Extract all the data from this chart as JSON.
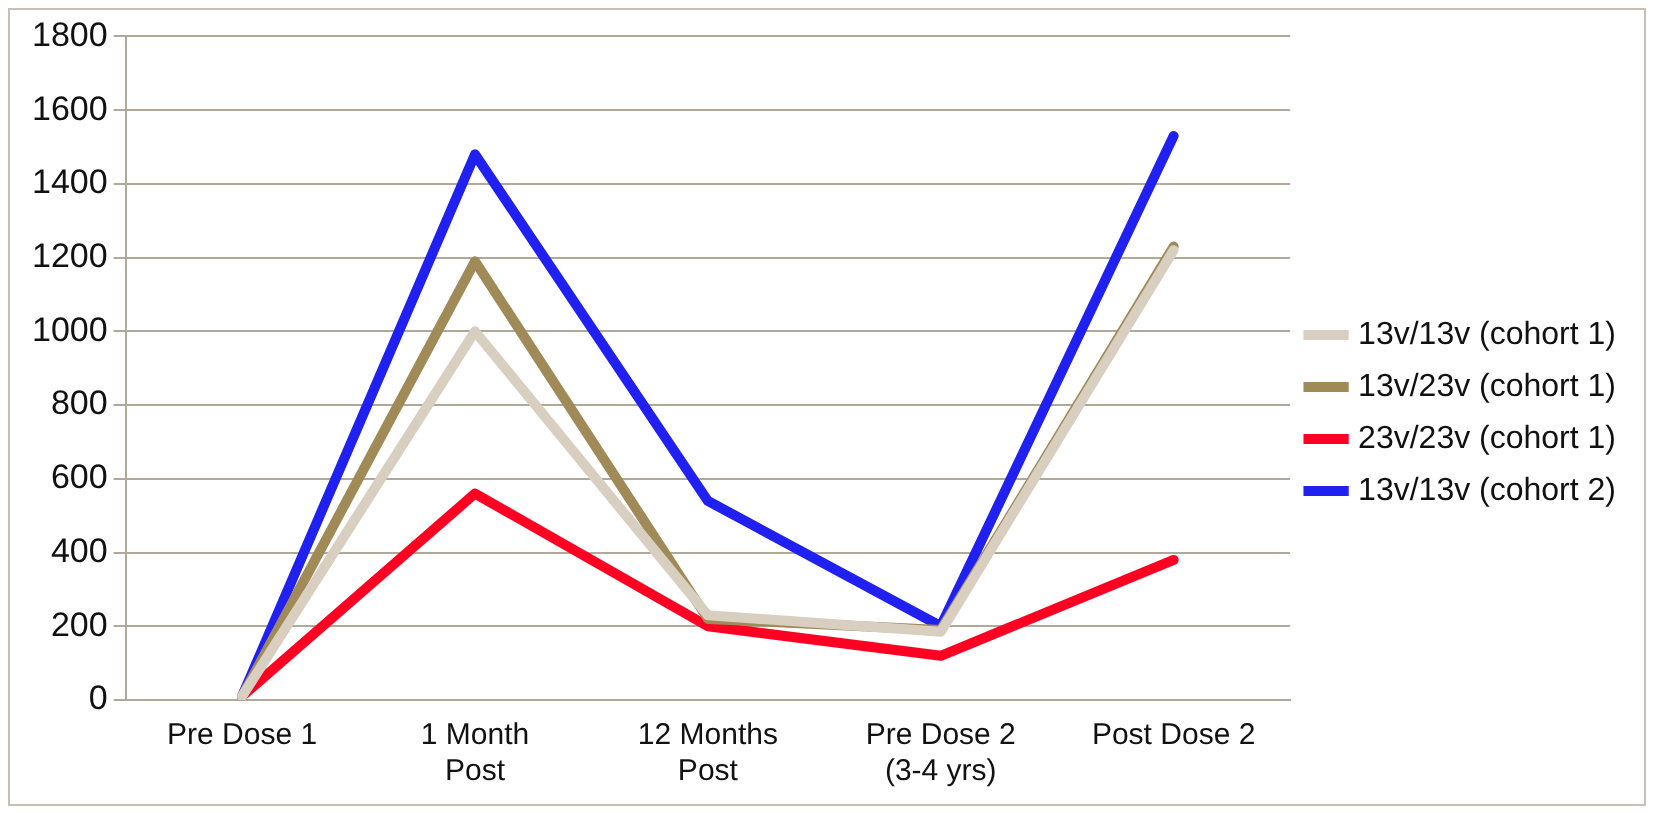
{
  "chart_data": {
    "type": "line",
    "categories": [
      "Pre Dose 1",
      "1 Month Post",
      "12 Months Post",
      "Pre Dose 2 (3-4 yrs)",
      "Post Dose 2"
    ],
    "series": [
      {
        "name": "13v/13v (cohort 1)",
        "color": "#d9cfc1",
        "values": [
          10,
          1000,
          230,
          185,
          1220
        ]
      },
      {
        "name": "13v/23v (cohort 1)",
        "color": "#a08a57",
        "values": [
          10,
          1190,
          220,
          190,
          1230
        ]
      },
      {
        "name": "23v/23v (cohort 1)",
        "color": "#ff0022",
        "values": [
          10,
          560,
          200,
          120,
          380
        ]
      },
      {
        "name": "13v/13v (cohort 2)",
        "color": "#2020f0",
        "values": [
          10,
          1480,
          540,
          200,
          1530
        ]
      }
    ],
    "ylim": [
      0,
      1800
    ],
    "yticks": [
      0,
      200,
      400,
      600,
      800,
      1000,
      1200,
      1400,
      1600,
      1800
    ],
    "grid": "y",
    "legend": "right",
    "marker": "none",
    "line_style": "solid"
  }
}
